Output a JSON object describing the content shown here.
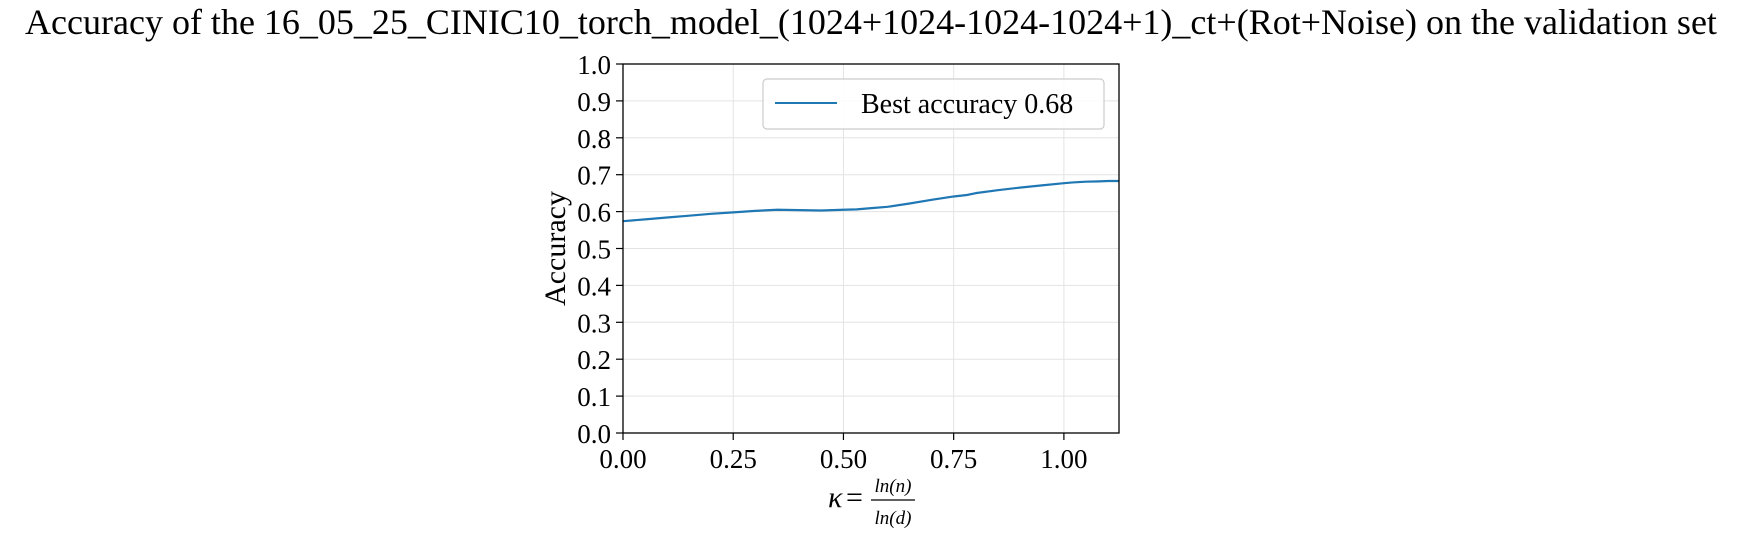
{
  "chart_data": {
    "type": "line",
    "title": "Accuracy of the 16_05_25_CINIC10_torch_model_(1024+1024-1024-1024+1)_ct+(Rot+Noise) on the validation set",
    "xlabel": {
      "symbol": "κ",
      "equals": "=",
      "numerator": "ln(n)",
      "denominator": "ln(d)"
    },
    "ylabel": "Accuracy",
    "xlim": [
      0.0,
      1.125
    ],
    "ylim": [
      0.0,
      1.0
    ],
    "x_ticks": [
      0.0,
      0.25,
      0.5,
      0.75,
      1.0
    ],
    "x_tick_labels": [
      "0.00",
      "0.25",
      "0.50",
      "0.75",
      "1.00"
    ],
    "y_ticks": [
      0.0,
      0.1,
      0.2,
      0.3,
      0.4,
      0.5,
      0.6,
      0.7,
      0.8,
      0.9,
      1.0
    ],
    "y_tick_labels": [
      "0.0",
      "0.1",
      "0.2",
      "0.3",
      "0.4",
      "0.5",
      "0.6",
      "0.7",
      "0.8",
      "0.9",
      "1.0"
    ],
    "grid": true,
    "legend_position": "top-right",
    "series": [
      {
        "name": "Best accuracy 0.68",
        "color": "#1f77b4",
        "x": [
          0.0,
          0.05,
          0.1,
          0.15,
          0.2,
          0.25,
          0.3,
          0.35,
          0.4,
          0.45,
          0.5,
          0.53,
          0.56,
          0.6,
          0.65,
          0.7,
          0.75,
          0.78,
          0.8,
          0.85,
          0.9,
          0.95,
          1.0,
          1.02,
          1.05,
          1.08,
          1.1,
          1.125
        ],
        "y": [
          0.574,
          0.579,
          0.584,
          0.589,
          0.594,
          0.598,
          0.602,
          0.605,
          0.604,
          0.603,
          0.605,
          0.606,
          0.609,
          0.613,
          0.622,
          0.632,
          0.641,
          0.645,
          0.65,
          0.658,
          0.665,
          0.671,
          0.677,
          0.679,
          0.681,
          0.682,
          0.683,
          0.683
        ]
      }
    ]
  }
}
